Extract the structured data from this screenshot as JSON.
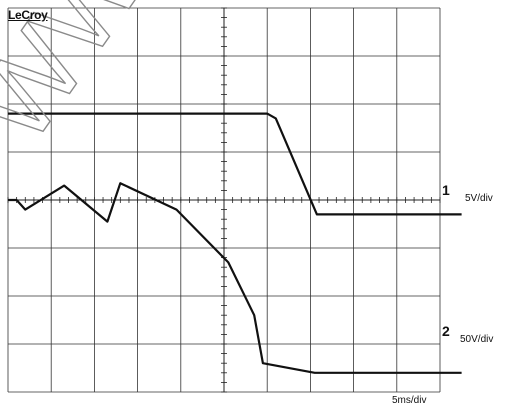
{
  "brand": "LeCroy",
  "watermark": "WWW",
  "channels": [
    {
      "id": "1",
      "scale": "5V/div"
    },
    {
      "id": "2",
      "scale": "50V/div"
    }
  ],
  "timebase": "5ms/div",
  "chart_data": {
    "type": "line",
    "grid": true,
    "xdivs": 10,
    "ydivs": 8,
    "x_unit": "div",
    "series": [
      {
        "channel": "1",
        "points": [
          [
            0,
            1.8
          ],
          [
            6,
            1.8
          ],
          [
            6.2,
            1.7
          ],
          [
            7.15,
            -0.3
          ],
          [
            10.5,
            -0.3
          ]
        ]
      },
      {
        "channel": "2",
        "points": [
          [
            0,
            0
          ],
          [
            0.2,
            0
          ],
          [
            0.4,
            -0.2
          ],
          [
            1.3,
            0.3
          ],
          [
            2.3,
            -0.45
          ],
          [
            2.6,
            0.35
          ],
          [
            3.9,
            -0.2
          ],
          [
            5.1,
            -1.3
          ],
          [
            5.7,
            -2.4
          ],
          [
            5.9,
            -3.4
          ],
          [
            7.1,
            -3.6
          ],
          [
            10.5,
            -3.6
          ]
        ]
      }
    ]
  }
}
